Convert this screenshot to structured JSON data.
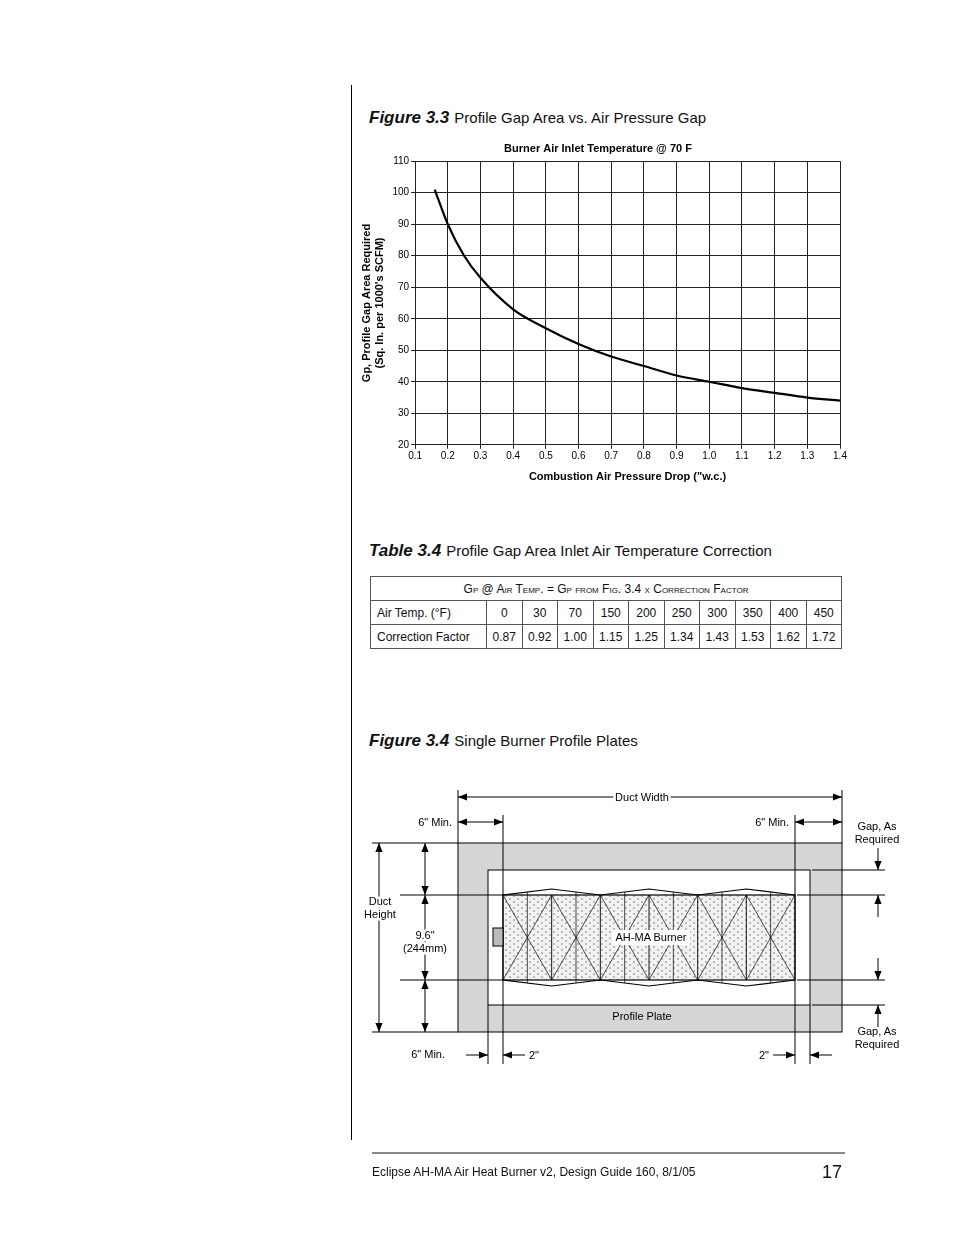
{
  "chart_data": {
    "type": "line",
    "title": "Burner Air Inlet Temperature @ 70 F",
    "xlabel": "Combustion Air Pressure Drop (\"w.c.)",
    "ylabel": [
      "Gp, Profile Gap Area Required",
      "(Sq. In. per 1000's SCFM)"
    ],
    "x": [
      0.16,
      0.2,
      0.25,
      0.3,
      0.4,
      0.5,
      0.6,
      0.7,
      0.8,
      0.9,
      1.0,
      1.1,
      1.2,
      1.3,
      1.4
    ],
    "values": [
      101,
      90,
      80,
      73,
      63,
      57,
      52,
      48,
      45,
      42,
      40,
      38,
      36.5,
      35,
      34
    ],
    "color": "#000000",
    "xlim": [
      0.1,
      1.4
    ],
    "xticks": [
      0.1,
      0.2,
      0.3,
      0.4,
      0.5,
      0.6,
      0.7,
      0.8,
      0.9,
      {
        "value": 1,
        "label": "1.0"
      },
      1.1,
      1.2,
      1.3,
      1.4
    ],
    "ylim": [
      20,
      110
    ],
    "yticks": [
      20,
      30,
      40,
      50,
      60,
      70,
      80,
      90,
      100,
      110
    ],
    "grid": true
  },
  "figure_3_3": {
    "number": "Figure 3.3",
    "caption": "Profile Gap Area vs. Air Pressure Gap"
  },
  "table_3_4": {
    "number": "Table 3.4",
    "caption": "Profile Gap Area Inlet Air Temperature Correction",
    "header": "Gp @ Air Temp. = Gp from Fig. 3.4 x Correction Factor",
    "rows": [
      [
        "Air Temp. (°F)",
        "0",
        "30",
        "70",
        "150",
        "200",
        "250",
        "300",
        "350",
        "400",
        "450"
      ],
      [
        "Correction Factor",
        "0.87",
        "0.92",
        "1.00",
        "1.15",
        "1.25",
        "1.34",
        "1.43",
        "1.53",
        "1.62",
        "1.72"
      ]
    ]
  },
  "figure_3_4": {
    "number": "Figure 3.4",
    "caption": "Single Burner Profile Plates",
    "labels": {
      "duct_width": "Duct Width",
      "min_top_left": "6\" Min.",
      "min_top_right": "6\" Min.",
      "min_bottom_left": "6\" Min.",
      "gap_top": [
        "Gap, As",
        "Required"
      ],
      "gap_bottom": [
        "Gap, As",
        "Required"
      ],
      "duct_height": [
        "Duct",
        "Height"
      ],
      "burner_height": [
        "9.6\"",
        "(244mm)"
      ],
      "burner": "AH-MA Burner",
      "plate": "Profile Plate",
      "two_left": "2\"",
      "two_right": "2\""
    }
  },
  "footer": {
    "text": "Eclipse AH-MA Air Heat Burner v2, Design Guide 160, 8/1/05",
    "page": "17"
  }
}
